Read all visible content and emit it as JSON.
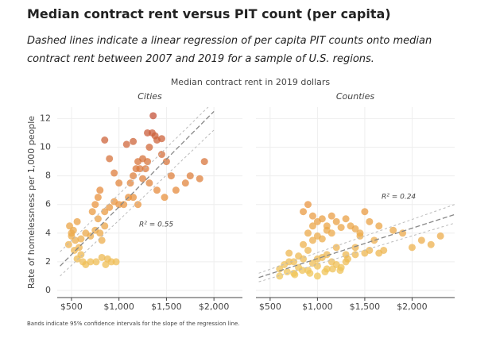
{
  "title": "Median contract rent versus PIT count (per capita)",
  "subtitle": "Dashed lines indicate a linear regression of per capita PIT counts onto median contract rent between 2007 and 2019 for a sample of U.S. regions.",
  "x_label": "Median contract rent in 2019 dollars",
  "y_label": "Rate of homelessness per 1,000 people",
  "note": "Bands indicate 95% confidence intervals for the slope of the regression line.",
  "chart_data": [
    {
      "type": "scatter",
      "title": "Cities",
      "x": [
        480,
        500,
        520,
        540,
        560,
        500,
        470,
        530,
        580,
        600,
        620,
        650,
        700,
        560,
        600,
        650,
        700,
        750,
        800,
        820,
        850,
        780,
        720,
        750,
        780,
        800,
        760,
        820,
        880,
        920,
        970,
        860,
        850,
        900,
        950,
        1000,
        1050,
        1100,
        1120,
        1150,
        1180,
        1200,
        1220,
        1250,
        1250,
        1280,
        1300,
        1320,
        1300,
        1350,
        1360,
        1380,
        1400,
        1320,
        1400,
        1450,
        1500,
        1550,
        1480,
        1600,
        1700,
        1750,
        1850,
        1900,
        1080,
        1150,
        850,
        900,
        950,
        1000,
        1450,
        1200,
        1150
      ],
      "values": [
        4.5,
        3.8,
        4.2,
        3.5,
        4.8,
        4.0,
        3.2,
        2.8,
        3.0,
        2.5,
        2.0,
        1.8,
        2.0,
        2.2,
        3.6,
        4.0,
        3.8,
        4.2,
        4.0,
        3.5,
        4.5,
        5.0,
        5.5,
        6.0,
        6.5,
        7.0,
        2.0,
        2.3,
        2.2,
        2.0,
        2.0,
        1.8,
        5.5,
        5.8,
        6.2,
        7.5,
        6.0,
        6.5,
        7.5,
        8.0,
        8.5,
        9.0,
        8.5,
        9.2,
        7.8,
        8.5,
        9.0,
        10.0,
        11.0,
        11.0,
        12.2,
        10.8,
        10.5,
        7.5,
        7.0,
        9.5,
        9.0,
        8.0,
        6.5,
        7.0,
        7.5,
        8.0,
        7.8,
        9.0,
        10.2,
        10.4,
        10.5,
        9.2,
        8.2,
        6.0,
        10.6,
        6.0,
        6.5
      ],
      "lines": [
        {
          "x": [
            380,
            2000
          ],
          "y": [
            1.7,
            12.5
          ],
          "color": "#888"
        },
        {
          "x": [
            380,
            2000
          ],
          "y": [
            2.7,
            13.2
          ],
          "color": "#bbb"
        },
        {
          "x": [
            380,
            2000
          ],
          "y": [
            1.0,
            11.2
          ],
          "color": "#bbb"
        }
      ],
      "annotation": "R² = 0.55",
      "xlim": [
        350,
        2300
      ],
      "ylim": [
        -0.5,
        12.8
      ],
      "xticks": [
        {
          "value": 500,
          "label": "$500"
        },
        {
          "value": 1000,
          "label": "$1,000"
        },
        {
          "value": 1500,
          "label": "$1,500"
        },
        {
          "value": 2000,
          "label": "$2,000"
        }
      ],
      "yticks": [
        0,
        2,
        4,
        6,
        8,
        10,
        12
      ],
      "colors": [
        "#f0c75a",
        "#e8913e",
        "#c4533a"
      ],
      "grid": true
    },
    {
      "type": "scatter",
      "title": "Counties",
      "x": [
        600,
        650,
        700,
        750,
        800,
        850,
        900,
        950,
        1000,
        1050,
        1100,
        1150,
        1200,
        700,
        800,
        900,
        1000,
        1100,
        1250,
        1300,
        600,
        680,
        760,
        840,
        920,
        1000,
        1080,
        1160,
        1240,
        1320,
        1400,
        850,
        900,
        950,
        1000,
        1050,
        1100,
        1150,
        1200,
        1300,
        1400,
        1500,
        900,
        950,
        1000,
        1100,
        1200,
        1350,
        1450,
        1550,
        1650,
        1300,
        1400,
        1500,
        1600,
        1700,
        1800,
        1900,
        2000,
        2100,
        2200,
        2300,
        850,
        950,
        1050,
        1150,
        1250,
        1450,
        1550,
        1650,
        750
      ],
      "values": [
        1.5,
        1.8,
        2.0,
        1.2,
        1.6,
        2.2,
        1.4,
        1.9,
        1.7,
        2.3,
        1.5,
        2.0,
        1.8,
        2.6,
        2.4,
        2.8,
        2.2,
        2.5,
        1.6,
        2.0,
        1.0,
        1.3,
        1.1,
        1.4,
        1.2,
        1.0,
        1.3,
        1.5,
        1.4,
        2.2,
        2.5,
        5.5,
        6.0,
        5.2,
        4.8,
        5.0,
        4.5,
        5.2,
        4.8,
        5.0,
        4.3,
        5.5,
        4.0,
        3.5,
        3.8,
        4.2,
        3.0,
        4.5,
        4.0,
        4.8,
        4.5,
        2.5,
        3.0,
        2.6,
        3.5,
        2.8,
        4.2,
        4.0,
        3.0,
        3.5,
        3.2,
        3.8,
        3.2,
        4.5,
        3.6,
        4.0,
        4.4,
        3.8,
        2.8,
        2.6,
        2.0
      ],
      "lines": [
        {
          "x": [
            380,
            2450
          ],
          "y": [
            0.9,
            5.3
          ],
          "color": "#888"
        },
        {
          "x": [
            380,
            2450
          ],
          "y": [
            1.2,
            6.0
          ],
          "color": "#bbb"
        },
        {
          "x": [
            380,
            2450
          ],
          "y": [
            0.6,
            4.7
          ],
          "color": "#bbb"
        }
      ],
      "annotation": "R² = 0.24",
      "xlim": [
        350,
        2450
      ],
      "ylim": [
        -0.5,
        12.8
      ],
      "xticks": [
        {
          "value": 500,
          "label": "$500"
        },
        {
          "value": 1000,
          "label": "$1,000"
        },
        {
          "value": 1500,
          "label": "$1,500"
        },
        {
          "value": 2000,
          "label": "$2,000"
        }
      ],
      "yticks": [
        0,
        2,
        4,
        6,
        8,
        10,
        12
      ],
      "colors": [
        "#f0c75a",
        "#e8913e",
        "#c4533a"
      ],
      "grid": true
    }
  ]
}
